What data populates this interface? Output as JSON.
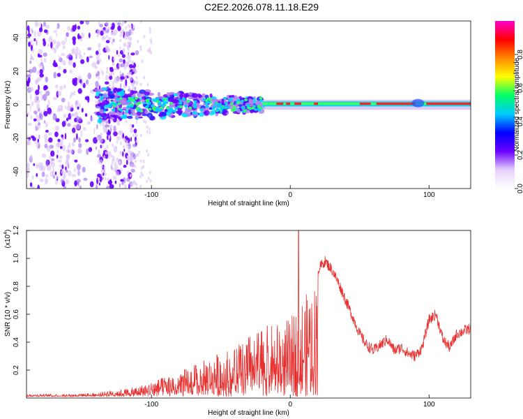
{
  "title": "C2E2.2026.078.11.18.E29",
  "chart_data": [
    {
      "type": "heatmap",
      "name": "spectrogram",
      "xlabel": "Height of straight line (km)",
      "ylabel": "Frequency (Hz)",
      "xlim": [
        -190,
        130
      ],
      "ylim": [
        -50,
        50
      ],
      "xticks": [
        -100,
        0,
        100
      ],
      "xtick_labels": [
        "-100",
        "0",
        "100"
      ],
      "yticks": [
        -40,
        -20,
        0,
        20,
        40
      ],
      "ytick_labels": [
        "-40",
        "-20",
        "0",
        "20",
        "40"
      ],
      "colorbar": {
        "label": "Normalized spectral amplitude",
        "range": [
          0,
          1
        ],
        "ticks": [
          0,
          0.2,
          0.4,
          0.6,
          0.8
        ],
        "tick_labels": [
          "0.0",
          "0.2",
          "0.4",
          "0.6",
          "0.8"
        ],
        "colors": [
          "#ffffff",
          "#e6d2fa",
          "#6a00ff",
          "#0000ff",
          "#00ccff",
          "#00ff66",
          "#ffff00",
          "#ff8800",
          "#ff0000",
          "#ff00cc"
        ]
      }
    },
    {
      "type": "line",
      "name": "snr",
      "xlabel": "Height of straight line (km)",
      "ylabel": "SNR (10 * v/v)",
      "y_multiplier": "(x10",
      "y_multiplier_exp": "4",
      "xlim": [
        -190,
        130
      ],
      "ylim": [
        0,
        1.2
      ],
      "xticks": [
        -100,
        0,
        100
      ],
      "xtick_labels": [
        "-100",
        "0",
        "100"
      ],
      "yticks": [
        0.2,
        0.4,
        0.6,
        0.8,
        1.0,
        1.2
      ],
      "ytick_labels": [
        "0.2",
        "0.4",
        "0.6",
        "0.8",
        "1.0",
        "1.2"
      ],
      "color": "#e8302f",
      "series": [
        {
          "name": "SNR",
          "x": [
            -190,
            -160,
            -140,
            -130,
            -120,
            -110,
            -100,
            -90,
            -80,
            -70,
            -60,
            -50,
            -40,
            -30,
            -20,
            -10,
            0,
            5,
            10,
            20,
            25,
            30,
            35,
            40,
            45,
            50,
            55,
            60,
            65,
            70,
            75,
            80,
            85,
            90,
            95,
            100,
            105,
            110,
            115,
            120,
            125,
            130
          ],
          "y": [
            0.02,
            0.02,
            0.03,
            0.05,
            0.06,
            0.08,
            0.12,
            0.16,
            0.2,
            0.25,
            0.3,
            0.36,
            0.42,
            0.5,
            0.56,
            0.58,
            0.62,
            0.72,
            0.8,
            0.92,
            0.98,
            0.92,
            0.82,
            0.7,
            0.58,
            0.46,
            0.38,
            0.34,
            0.38,
            0.42,
            0.34,
            0.36,
            0.32,
            0.3,
            0.36,
            0.56,
            0.6,
            0.42,
            0.36,
            0.46,
            0.48,
            0.5
          ]
        }
      ]
    }
  ]
}
